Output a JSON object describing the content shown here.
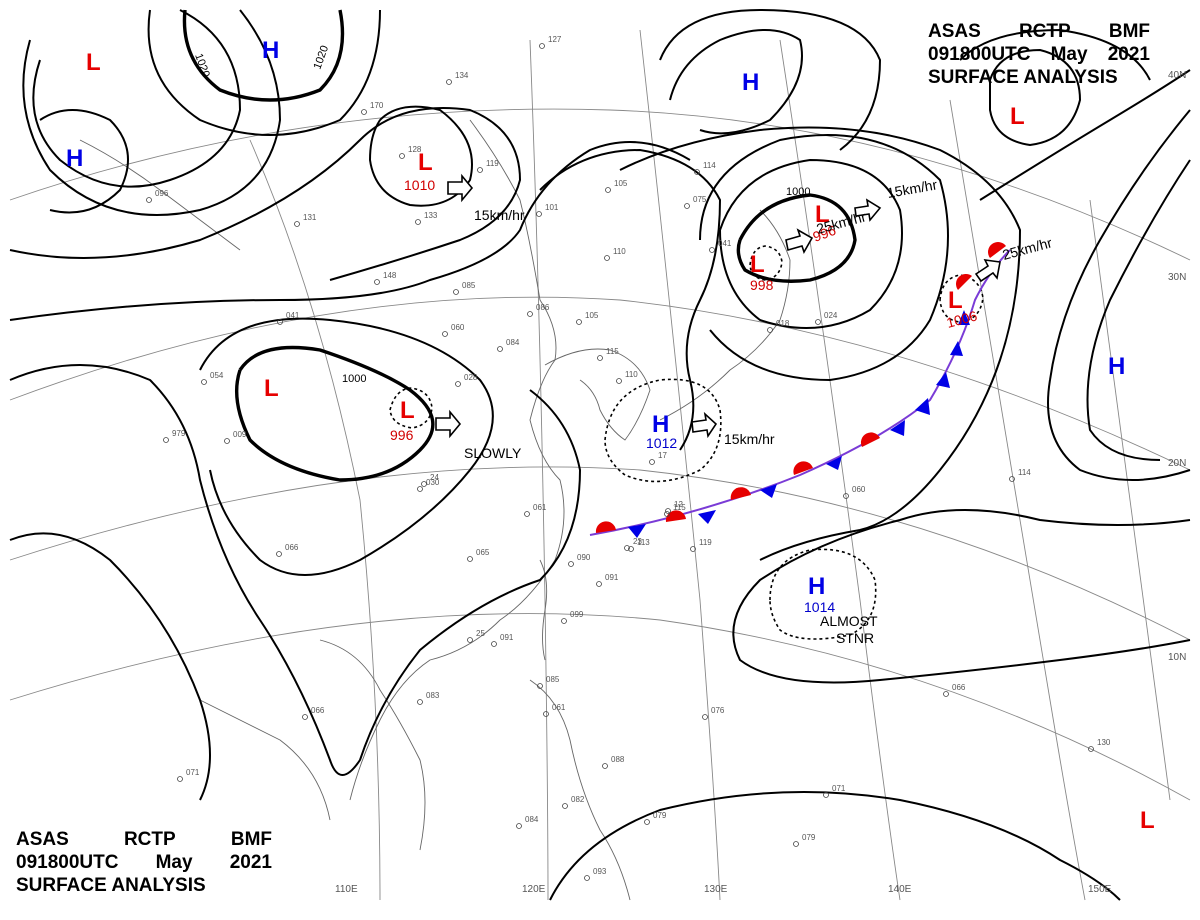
{
  "header": {
    "line1": [
      "ASAS",
      "RCTP",
      "BMF"
    ],
    "line2": [
      "091800UTC",
      "May",
      "2021"
    ],
    "line3": "SURFACE ANALYSIS"
  },
  "colors": {
    "low": "#e60000",
    "high": "#0000e6",
    "front_warm": "#e60000",
    "front_cold": "#0000e6"
  },
  "latitude_labels": [
    "40N",
    "30N",
    "20N",
    "10N"
  ],
  "longitude_labels": [
    "110E",
    "120E",
    "130E",
    "140E",
    "150E"
  ],
  "isobar_labels": [
    "1020",
    "1020",
    "1000",
    "1000"
  ],
  "lows": [
    {
      "id": "low-nw-corner",
      "symbol": "L",
      "value": ""
    },
    {
      "id": "low-manchuria",
      "symbol": "L",
      "value": "1010"
    },
    {
      "id": "low-central-china-main",
      "symbol": "L",
      "value": ""
    },
    {
      "id": "low-central-china",
      "symbol": "L",
      "value": "996"
    },
    {
      "id": "low-okhotsk",
      "symbol": "L",
      "value": "996"
    },
    {
      "id": "low-japan-sea",
      "symbol": "L",
      "value": "998"
    },
    {
      "id": "low-pacific-front",
      "symbol": "L",
      "value": "1006"
    },
    {
      "id": "low-ne-corner",
      "symbol": "L",
      "value": ""
    },
    {
      "id": "low-se-corner",
      "symbol": "L",
      "value": ""
    }
  ],
  "highs": [
    {
      "id": "high-mongolia",
      "symbol": "H",
      "value": ""
    },
    {
      "id": "high-west",
      "symbol": "H",
      "value": ""
    },
    {
      "id": "high-siberia-east",
      "symbol": "H",
      "value": ""
    },
    {
      "id": "high-pacific-east",
      "symbol": "H",
      "value": ""
    },
    {
      "id": "high-east-china-sea",
      "symbol": "H",
      "value": "1012"
    },
    {
      "id": "high-philippine-sea",
      "symbol": "H",
      "value": "1014"
    }
  ],
  "motion_notes": {
    "manchuria": "15km/hr",
    "okhotsk_speed": "25km/hr",
    "okhotsk_ne": "15km/hr",
    "pacific": "25km/hr",
    "central_china": "SLOWLY",
    "east_china_sea": "15km/hr",
    "philippine_sea_1": "ALMOST",
    "philippine_sea_2": "STNR"
  },
  "station_readings": [
    "127",
    "134",
    "170",
    "128",
    "119",
    "096",
    "131",
    "133",
    "148",
    "085",
    "060",
    "101",
    "105",
    "075",
    "114",
    "041",
    "110",
    "086",
    "084",
    "105",
    "024",
    "018",
    "028",
    "054",
    "041",
    "979",
    "009",
    "066",
    "030",
    "061",
    "065",
    "115",
    "113",
    "119",
    "090",
    "091",
    "099",
    "091",
    "083",
    "066",
    "085",
    "061",
    "076",
    "088",
    "079",
    "082",
    "084",
    "071",
    "071",
    "079",
    "093",
    "066",
    "130",
    "060",
    "114",
    "110",
    "115",
    "12",
    "17",
    "23",
    "24",
    "25"
  ]
}
